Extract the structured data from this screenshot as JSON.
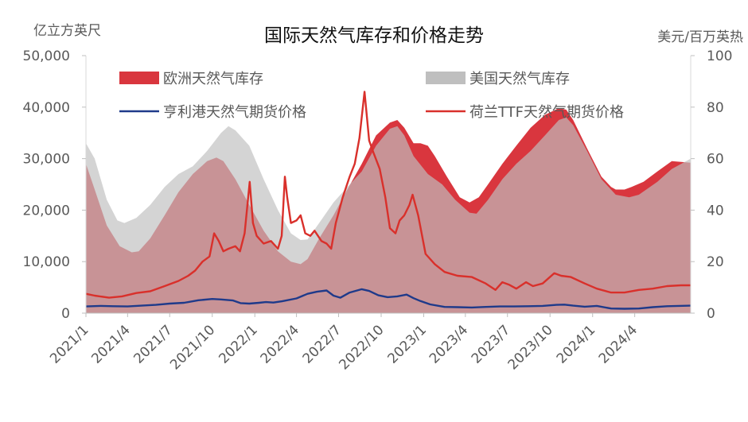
{
  "chart_data": {
    "type": "area",
    "title": "国际天然气库存和价格走势",
    "ylabel_left": "亿立方英尺",
    "ylabel_right": "美元/百万英热",
    "ylim_left": [
      0,
      50000
    ],
    "ylim_right": [
      0,
      100
    ],
    "yticks_left": [
      "0",
      "10,000",
      "20,000",
      "30,000",
      "40,000",
      "50,000"
    ],
    "yticks_right": [
      "0",
      "20",
      "40",
      "60",
      "80",
      "100"
    ],
    "xlim": [
      "2021-01-01",
      "2024-07-31"
    ],
    "x_tick_labels": [
      {
        "date": "2021-01-01",
        "label": "2021/1"
      },
      {
        "date": "2021-04-01",
        "label": "2021/4"
      },
      {
        "date": "2021-07-01",
        "label": "2021/7"
      },
      {
        "date": "2021-10-01",
        "label": "2021/10"
      },
      {
        "date": "2022-01-01",
        "label": "2022/1"
      },
      {
        "date": "2022-04-01",
        "label": "2022/4"
      },
      {
        "date": "2022-07-01",
        "label": "2022/7"
      },
      {
        "date": "2022-10-01",
        "label": "2022/10"
      },
      {
        "date": "2023-01-01",
        "label": "2023/1"
      },
      {
        "date": "2023-04-01",
        "label": "2023/4"
      },
      {
        "date": "2023-07-01",
        "label": "2023/7"
      },
      {
        "date": "2023-10-01",
        "label": "2023/10"
      },
      {
        "date": "2024-01-01",
        "label": "2024/1"
      },
      {
        "date": "2024-04-01",
        "label": "2024/4"
      }
    ],
    "legend": [
      {
        "name": "欧洲天然气库存",
        "kind": "area",
        "color": "#d9363e"
      },
      {
        "name": "美国天然气库存",
        "kind": "area",
        "color": "#bfbfbf"
      },
      {
        "name": "亨利港天然气期货价格",
        "kind": "line",
        "color": "#1f3a8a"
      },
      {
        "name": "荷兰TTF天然气期货价格",
        "kind": "line",
        "color": "#d9302b"
      }
    ],
    "series": [
      {
        "name": "欧洲天然气库存",
        "type": "area",
        "axis": "left",
        "color": "#d9363e",
        "points": [
          [
            "2021-01-01",
            29000
          ],
          [
            "2021-01-20",
            24000
          ],
          [
            "2021-02-15",
            17000
          ],
          [
            "2021-03-15",
            13000
          ],
          [
            "2021-04-10",
            11800
          ],
          [
            "2021-04-25",
            12000
          ],
          [
            "2021-05-20",
            14500
          ],
          [
            "2021-06-20",
            19000
          ],
          [
            "2021-07-20",
            23500
          ],
          [
            "2021-08-20",
            27000
          ],
          [
            "2021-09-20",
            29500
          ],
          [
            "2021-10-10",
            30200
          ],
          [
            "2021-10-25",
            29500
          ],
          [
            "2021-11-20",
            26000
          ],
          [
            "2021-12-20",
            21000
          ],
          [
            "2022-01-20",
            16000
          ],
          [
            "2022-02-20",
            12000
          ],
          [
            "2022-03-20",
            10000
          ],
          [
            "2022-04-10",
            9500
          ],
          [
            "2022-04-25",
            10500
          ],
          [
            "2022-05-20",
            14500
          ],
          [
            "2022-06-20",
            19000
          ],
          [
            "2022-07-20",
            24000
          ],
          [
            "2022-08-20",
            29000
          ],
          [
            "2022-09-20",
            34500
          ],
          [
            "2022-10-20",
            37000
          ],
          [
            "2022-11-05",
            37500
          ],
          [
            "2022-11-20",
            36000
          ],
          [
            "2022-12-10",
            33000
          ],
          [
            "2022-12-25",
            33000
          ],
          [
            "2023-01-10",
            32500
          ],
          [
            "2023-01-25",
            30500
          ],
          [
            "2023-02-20",
            26500
          ],
          [
            "2023-03-20",
            22500
          ],
          [
            "2023-04-10",
            21500
          ],
          [
            "2023-04-30",
            22500
          ],
          [
            "2023-05-20",
            25000
          ],
          [
            "2023-06-20",
            29000
          ],
          [
            "2023-07-20",
            32500
          ],
          [
            "2023-08-20",
            36000
          ],
          [
            "2023-09-20",
            38500
          ],
          [
            "2023-10-20",
            39800
          ],
          [
            "2023-11-05",
            39500
          ],
          [
            "2023-11-20",
            37500
          ],
          [
            "2023-12-20",
            32000
          ],
          [
            "2024-01-20",
            26500
          ],
          [
            "2024-02-10",
            24500
          ],
          [
            "2024-02-20",
            24000
          ],
          [
            "2024-03-10",
            24000
          ],
          [
            "2024-03-25",
            24500
          ],
          [
            "2024-04-20",
            25500
          ],
          [
            "2024-05-20",
            27500
          ],
          [
            "2024-06-20",
            29500
          ],
          [
            "2024-07-31",
            29200
          ]
        ]
      },
      {
        "name": "美国天然气库存",
        "type": "area",
        "axis": "left",
        "color": "#bfbfbf",
        "points": [
          [
            "2021-01-01",
            33000
          ],
          [
            "2021-01-20",
            30000
          ],
          [
            "2021-02-15",
            22000
          ],
          [
            "2021-03-10",
            18000
          ],
          [
            "2021-03-25",
            17500
          ],
          [
            "2021-04-20",
            18500
          ],
          [
            "2021-05-20",
            21000
          ],
          [
            "2021-06-20",
            24500
          ],
          [
            "2021-07-20",
            27000
          ],
          [
            "2021-08-20",
            28500
          ],
          [
            "2021-09-20",
            31500
          ],
          [
            "2021-10-20",
            35000
          ],
          [
            "2021-11-05",
            36300
          ],
          [
            "2021-11-20",
            35500
          ],
          [
            "2021-12-20",
            32500
          ],
          [
            "2022-01-20",
            26000
          ],
          [
            "2022-02-20",
            20000
          ],
          [
            "2022-03-20",
            15500
          ],
          [
            "2022-04-10",
            14200
          ],
          [
            "2022-04-25",
            14300
          ],
          [
            "2022-05-20",
            17500
          ],
          [
            "2022-06-20",
            21500
          ],
          [
            "2022-07-20",
            24500
          ],
          [
            "2022-08-20",
            27500
          ],
          [
            "2022-09-20",
            32500
          ],
          [
            "2022-10-20",
            35800
          ],
          [
            "2022-11-05",
            36300
          ],
          [
            "2022-11-20",
            34500
          ],
          [
            "2022-12-10",
            30500
          ],
          [
            "2023-01-10",
            27000
          ],
          [
            "2023-02-10",
            25000
          ],
          [
            "2023-03-10",
            22000
          ],
          [
            "2023-04-10",
            19500
          ],
          [
            "2023-04-25",
            19300
          ],
          [
            "2023-05-20",
            22000
          ],
          [
            "2023-06-20",
            26000
          ],
          [
            "2023-07-20",
            29000
          ],
          [
            "2023-08-20",
            31500
          ],
          [
            "2023-09-20",
            34500
          ],
          [
            "2023-10-20",
            37500
          ],
          [
            "2023-11-05",
            38000
          ],
          [
            "2023-11-20",
            36500
          ],
          [
            "2023-12-20",
            31500
          ],
          [
            "2024-01-20",
            26000
          ],
          [
            "2024-02-20",
            23000
          ],
          [
            "2024-03-20",
            22500
          ],
          [
            "2024-04-10",
            23000
          ],
          [
            "2024-05-20",
            25500
          ],
          [
            "2024-06-20",
            28000
          ],
          [
            "2024-07-31",
            30000
          ]
        ]
      },
      {
        "name": "亨利港天然气期货价格",
        "type": "line",
        "axis": "right",
        "color": "#1f3a8a",
        "points": [
          [
            "2021-01-01",
            2.6
          ],
          [
            "2021-02-01",
            2.8
          ],
          [
            "2021-03-01",
            2.7
          ],
          [
            "2021-04-01",
            2.6
          ],
          [
            "2021-05-01",
            2.9
          ],
          [
            "2021-06-01",
            3.2
          ],
          [
            "2021-07-01",
            3.7
          ],
          [
            "2021-08-01",
            4.0
          ],
          [
            "2021-09-01",
            5.0
          ],
          [
            "2021-10-01",
            5.5
          ],
          [
            "2021-10-20",
            5.3
          ],
          [
            "2021-11-15",
            4.9
          ],
          [
            "2021-12-01",
            3.9
          ],
          [
            "2021-12-20",
            3.7
          ],
          [
            "2022-01-10",
            4.0
          ],
          [
            "2022-01-25",
            4.3
          ],
          [
            "2022-02-10",
            4.1
          ],
          [
            "2022-03-01",
            4.6
          ],
          [
            "2022-04-01",
            5.7
          ],
          [
            "2022-04-25",
            7.5
          ],
          [
            "2022-05-15",
            8.3
          ],
          [
            "2022-06-05",
            8.8
          ],
          [
            "2022-06-20",
            6.8
          ],
          [
            "2022-07-05",
            6.0
          ],
          [
            "2022-07-25",
            8.0
          ],
          [
            "2022-08-20",
            9.3
          ],
          [
            "2022-09-05",
            8.6
          ],
          [
            "2022-09-25",
            6.9
          ],
          [
            "2022-10-15",
            6.2
          ],
          [
            "2022-11-05",
            6.5
          ],
          [
            "2022-11-25",
            7.2
          ],
          [
            "2022-12-10",
            5.8
          ],
          [
            "2022-12-25",
            4.7
          ],
          [
            "2023-01-15",
            3.4
          ],
          [
            "2023-02-15",
            2.4
          ],
          [
            "2023-03-15",
            2.3
          ],
          [
            "2023-04-15",
            2.2
          ],
          [
            "2023-05-15",
            2.4
          ],
          [
            "2023-06-15",
            2.6
          ],
          [
            "2023-07-15",
            2.6
          ],
          [
            "2023-08-15",
            2.7
          ],
          [
            "2023-09-15",
            2.8
          ],
          [
            "2023-10-15",
            3.2
          ],
          [
            "2023-11-01",
            3.3
          ],
          [
            "2023-11-20",
            2.9
          ],
          [
            "2023-12-15",
            2.5
          ],
          [
            "2024-01-10",
            2.8
          ],
          [
            "2024-02-10",
            1.8
          ],
          [
            "2024-03-10",
            1.7
          ],
          [
            "2024-04-10",
            1.8
          ],
          [
            "2024-05-10",
            2.3
          ],
          [
            "2024-06-10",
            2.7
          ],
          [
            "2024-07-31",
            2.9
          ]
        ]
      },
      {
        "name": "荷兰TTF天然气期货价格",
        "type": "line",
        "axis": "right",
        "color": "#d9302b",
        "points": [
          [
            "2021-01-01",
            7.5
          ],
          [
            "2021-01-20",
            6.8
          ],
          [
            "2021-02-20",
            6.0
          ],
          [
            "2021-03-20",
            6.5
          ],
          [
            "2021-04-20",
            7.8
          ],
          [
            "2021-05-20",
            8.5
          ],
          [
            "2021-06-20",
            10.5
          ],
          [
            "2021-07-20",
            12.5
          ],
          [
            "2021-08-10",
            14.5
          ],
          [
            "2021-08-25",
            16.5
          ],
          [
            "2021-09-10",
            20.0
          ],
          [
            "2021-09-25",
            22.0
          ],
          [
            "2021-10-05",
            31.0
          ],
          [
            "2021-10-15",
            28.0
          ],
          [
            "2021-10-25",
            24.0
          ],
          [
            "2021-11-05",
            25.0
          ],
          [
            "2021-11-20",
            26.0
          ],
          [
            "2021-11-30",
            24.0
          ],
          [
            "2021-12-10",
            31.0
          ],
          [
            "2021-12-21",
            51.0
          ],
          [
            "2021-12-28",
            35.0
          ],
          [
            "2022-01-05",
            30.0
          ],
          [
            "2022-01-20",
            27.0
          ],
          [
            "2022-02-05",
            28.0
          ],
          [
            "2022-02-20",
            25.0
          ],
          [
            "2022-02-28",
            30.0
          ],
          [
            "2022-03-07",
            53.0
          ],
          [
            "2022-03-12",
            45.0
          ],
          [
            "2022-03-20",
            35.0
          ],
          [
            "2022-04-01",
            36.0
          ],
          [
            "2022-04-10",
            38.0
          ],
          [
            "2022-04-20",
            31.0
          ],
          [
            "2022-05-01",
            30.0
          ],
          [
            "2022-05-10",
            32.0
          ],
          [
            "2022-05-25",
            28.0
          ],
          [
            "2022-06-05",
            27.0
          ],
          [
            "2022-06-15",
            25.0
          ],
          [
            "2022-06-25",
            35.0
          ],
          [
            "2022-07-10",
            45.0
          ],
          [
            "2022-07-25",
            53.0
          ],
          [
            "2022-08-05",
            58.0
          ],
          [
            "2022-08-15",
            68.0
          ],
          [
            "2022-08-26",
            86.0
          ],
          [
            "2022-09-05",
            67.0
          ],
          [
            "2022-09-15",
            62.0
          ],
          [
            "2022-09-28",
            56.0
          ],
          [
            "2022-10-10",
            45.0
          ],
          [
            "2022-10-20",
            33.0
          ],
          [
            "2022-11-01",
            31.0
          ],
          [
            "2022-11-10",
            36.0
          ],
          [
            "2022-11-20",
            38.0
          ],
          [
            "2022-12-01",
            42.0
          ],
          [
            "2022-12-08",
            46.0
          ],
          [
            "2022-12-20",
            38.0
          ],
          [
            "2023-01-05",
            23.0
          ],
          [
            "2023-01-25",
            19.0
          ],
          [
            "2023-02-15",
            16.0
          ],
          [
            "2023-03-15",
            14.5
          ],
          [
            "2023-04-15",
            14.0
          ],
          [
            "2023-05-15",
            11.5
          ],
          [
            "2023-06-05",
            9.0
          ],
          [
            "2023-06-20",
            12.0
          ],
          [
            "2023-07-05",
            11.0
          ],
          [
            "2023-07-20",
            9.5
          ],
          [
            "2023-08-10",
            12.0
          ],
          [
            "2023-08-25",
            10.5
          ],
          [
            "2023-09-15",
            11.5
          ],
          [
            "2023-10-10",
            15.5
          ],
          [
            "2023-10-25",
            14.5
          ],
          [
            "2023-11-15",
            14.0
          ],
          [
            "2023-12-15",
            11.5
          ],
          [
            "2024-01-10",
            9.5
          ],
          [
            "2024-02-10",
            8.0
          ],
          [
            "2024-03-10",
            8.0
          ],
          [
            "2024-04-10",
            9.0
          ],
          [
            "2024-05-10",
            9.5
          ],
          [
            "2024-06-10",
            10.5
          ],
          [
            "2024-07-10",
            10.8
          ],
          [
            "2024-07-31",
            10.8
          ]
        ]
      }
    ]
  }
}
